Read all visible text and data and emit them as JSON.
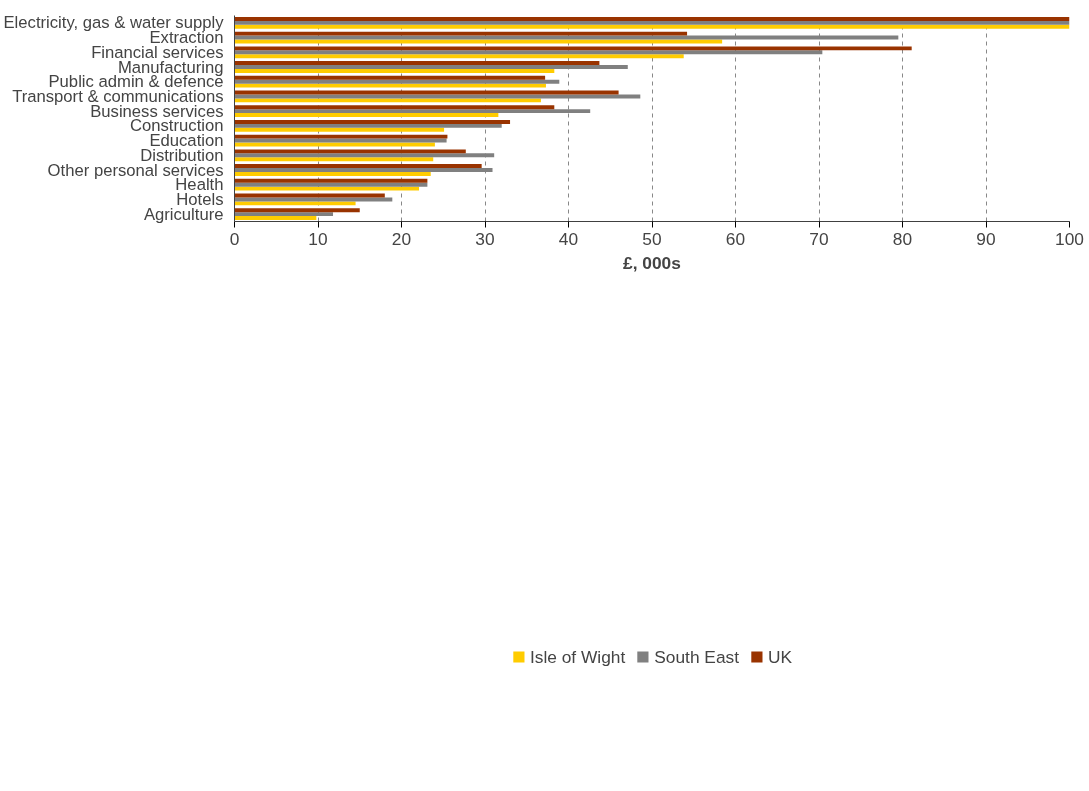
{
  "chart_data": {
    "type": "bar",
    "orientation": "horizontal",
    "xlabel": "£, 000s",
    "categories": [
      "Electricity, gas & water supply",
      "Extraction",
      "Financial services",
      "Manufacturing",
      "Public admin & defence",
      "Transport & communications",
      "Business services",
      "Construction",
      "Education",
      "Distribution",
      "Other personal services",
      "Health",
      "Hotels",
      "Agriculture"
    ],
    "series": [
      {
        "name": "Isle of Wight",
        "color": "#ffcc00",
        "values": [
          100,
          58.4,
          53.8,
          38.3,
          37.3,
          36.7,
          31.6,
          25.1,
          24.0,
          23.8,
          23.5,
          22.1,
          14.5,
          9.8
        ]
      },
      {
        "name": "South East",
        "color": "#808080",
        "values": [
          100,
          79.5,
          70.4,
          47.1,
          38.9,
          48.6,
          42.6,
          32.0,
          25.4,
          31.1,
          30.9,
          23.1,
          18.9,
          11.8
        ]
      },
      {
        "name": "UK",
        "color": "#993300",
        "values": [
          100,
          54.2,
          81.1,
          43.7,
          37.2,
          46.0,
          38.3,
          33.0,
          25.5,
          27.7,
          29.6,
          23.1,
          18.0,
          15.0
        ]
      }
    ],
    "xlim": [
      0,
      100
    ],
    "xticks": [
      0,
      10,
      20,
      30,
      40,
      50,
      60,
      70,
      80,
      90,
      100
    ],
    "grid": "x",
    "legend": "bottom"
  }
}
